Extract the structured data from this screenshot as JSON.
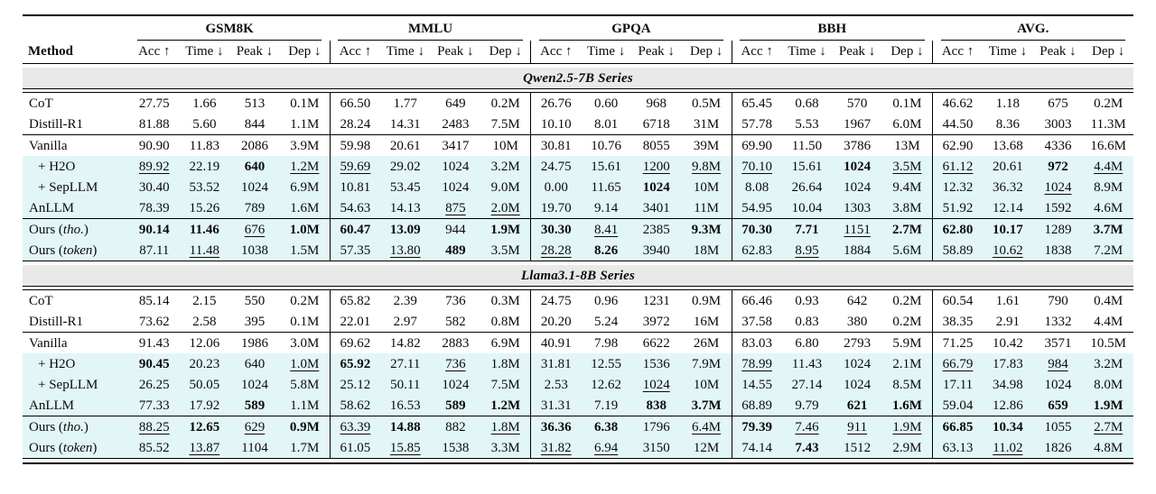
{
  "colors": {
    "highlight": "#e2f6f7",
    "section_bg": "#e9e9e9",
    "rule": "#000000",
    "ink": "#0a0a0a"
  },
  "table": {
    "method_header": "Method",
    "groups": [
      "GSM8K",
      "MMLU",
      "GPQA",
      "BBH",
      "AVG."
    ],
    "metrics": [
      "Acc ↑",
      "Time ↓",
      "Peak ↓",
      "Dep ↓"
    ],
    "legend": {
      "bold_means": "best",
      "underline_means": "second-best"
    },
    "sections": [
      {
        "title": "Qwen2.5-7B Series",
        "blocks": [
          [
            {
              "method": "CoT",
              "hl": false,
              "cells": [
                "27.75",
                "1.66",
                "513",
                "0.1M",
                "66.50",
                "1.77",
                "649",
                "0.2M",
                "26.76",
                "0.60",
                "968",
                "0.5M",
                "65.45",
                "0.68",
                "570",
                "0.1M",
                "46.62",
                "1.18",
                "675",
                "0.2M"
              ]
            },
            {
              "method": "Distill-R1",
              "hl": false,
              "cells": [
                "81.88",
                "5.60",
                "844",
                "1.1M",
                "28.24",
                "14.31",
                "2483",
                "7.5M",
                "10.10",
                "8.01",
                "6718",
                "31M",
                "57.78",
                "5.53",
                "1967",
                "6.0M",
                "44.50",
                "8.36",
                "3003",
                "11.3M"
              ]
            }
          ],
          [
            {
              "method": "Vanilla",
              "hl": false,
              "cells": [
                "90.90",
                "11.83",
                "2086",
                "3.9M",
                "59.98",
                "20.61",
                "3417",
                "10M",
                "30.81",
                "10.76",
                "8055",
                "39M",
                "69.90",
                "11.50",
                "3786",
                "13M",
                "62.90",
                "13.68",
                "4336",
                "16.6M"
              ]
            },
            {
              "method": "+ H2O",
              "indent": true,
              "hl": true,
              "cells": [
                "u:89.92",
                "22.19",
                "b:640",
                "u:1.2M",
                "u:59.69",
                "29.02",
                "1024",
                "3.2M",
                "24.75",
                "15.61",
                "u:1200",
                "u:9.8M",
                "u:70.10",
                "15.61",
                "b:1024",
                "u:3.5M",
                "u:61.12",
                "20.61",
                "b:972",
                "u:4.4M"
              ]
            },
            {
              "method": "+ SepLLM",
              "indent": true,
              "hl": true,
              "cells": [
                "30.40",
                "53.52",
                "1024",
                "6.9M",
                "10.81",
                "53.45",
                "1024",
                "9.0M",
                "0.00",
                "11.65",
                "b:1024",
                "10M",
                "8.08",
                "26.64",
                "1024",
                "9.4M",
                "12.32",
                "36.32",
                "u:1024",
                "8.9M"
              ]
            },
            {
              "method": "AnLLM",
              "hl": true,
              "cells": [
                "78.39",
                "15.26",
                "789",
                "1.6M",
                "54.63",
                "14.13",
                "u:875",
                "u:2.0M",
                "19.70",
                "9.14",
                "3401",
                "11M",
                "54.95",
                "10.04",
                "1303",
                "3.8M",
                "51.92",
                "12.14",
                "1592",
                "4.6M"
              ]
            }
          ],
          [
            {
              "method": "Ours",
              "note": "tho.",
              "hl": true,
              "cells": [
                "b:90.14",
                "b:11.46",
                "u:676",
                "b:1.0M",
                "b:60.47",
                "b:13.09",
                "944",
                "b:1.9M",
                "b:30.30",
                "u:8.41",
                "2385",
                "b:9.3M",
                "b:70.30",
                "b:7.71",
                "u:1151",
                "b:2.7M",
                "b:62.80",
                "b:10.17",
                "1289",
                "b:3.7M"
              ]
            },
            {
              "method": "Ours",
              "note": "token",
              "hl": true,
              "cells": [
                "87.11",
                "u:11.48",
                "1038",
                "1.5M",
                "57.35",
                "u:13.80",
                "b:489",
                "3.5M",
                "u:28.28",
                "b:8.26",
                "3940",
                "18M",
                "62.83",
                "u:8.95",
                "1884",
                "5.6M",
                "58.89",
                "u:10.62",
                "1838",
                "7.2M"
              ]
            }
          ]
        ]
      },
      {
        "title": "Llama3.1-8B Series",
        "blocks": [
          [
            {
              "method": "CoT",
              "hl": false,
              "cells": [
                "85.14",
                "2.15",
                "550",
                "0.2M",
                "65.82",
                "2.39",
                "736",
                "0.3M",
                "24.75",
                "0.96",
                "1231",
                "0.9M",
                "66.46",
                "0.93",
                "642",
                "0.2M",
                "60.54",
                "1.61",
                "790",
                "0.4M"
              ]
            },
            {
              "method": "Distill-R1",
              "hl": false,
              "cells": [
                "73.62",
                "2.58",
                "395",
                "0.1M",
                "22.01",
                "2.97",
                "582",
                "0.8M",
                "20.20",
                "5.24",
                "3972",
                "16M",
                "37.58",
                "0.83",
                "380",
                "0.2M",
                "38.35",
                "2.91",
                "1332",
                "4.4M"
              ]
            }
          ],
          [
            {
              "method": "Vanilla",
              "hl": false,
              "cells": [
                "91.43",
                "12.06",
                "1986",
                "3.0M",
                "69.62",
                "14.82",
                "2883",
                "6.9M",
                "40.91",
                "7.98",
                "6622",
                "26M",
                "83.03",
                "6.80",
                "2793",
                "5.9M",
                "71.25",
                "10.42",
                "3571",
                "10.5M"
              ]
            },
            {
              "method": "+ H2O",
              "indent": true,
              "hl": true,
              "cells": [
                "b:90.45",
                "20.23",
                "640",
                "u:1.0M",
                "b:65.92",
                "27.11",
                "u:736",
                "1.8M",
                "31.81",
                "12.55",
                "1536",
                "7.9M",
                "u:78.99",
                "11.43",
                "1024",
                "2.1M",
                "u:66.79",
                "17.83",
                "u:984",
                "3.2M"
              ]
            },
            {
              "method": "+ SepLLM",
              "indent": true,
              "hl": true,
              "cells": [
                "26.25",
                "50.05",
                "1024",
                "5.8M",
                "25.12",
                "50.11",
                "1024",
                "7.5M",
                "2.53",
                "12.62",
                "u:1024",
                "10M",
                "14.55",
                "27.14",
                "1024",
                "8.5M",
                "17.11",
                "34.98",
                "1024",
                "8.0M"
              ]
            },
            {
              "method": "AnLLM",
              "hl": true,
              "cells": [
                "77.33",
                "17.92",
                "b:589",
                "1.1M",
                "58.62",
                "16.53",
                "b:589",
                "b:1.2M",
                "31.31",
                "7.19",
                "b:838",
                "b:3.7M",
                "68.89",
                "9.79",
                "b:621",
                "b:1.6M",
                "59.04",
                "12.86",
                "b:659",
                "b:1.9M"
              ]
            }
          ],
          [
            {
              "method": "Ours",
              "note": "tho.",
              "hl": true,
              "cells": [
                "u:88.25",
                "b:12.65",
                "u:629",
                "b:0.9M",
                "u:63.39",
                "b:14.88",
                "882",
                "u:1.8M",
                "b:36.36",
                "b:6.38",
                "1796",
                "u:6.4M",
                "b:79.39",
                "u:7.46",
                "u:911",
                "u:1.9M",
                "b:66.85",
                "b:10.34",
                "1055",
                "u:2.7M"
              ]
            },
            {
              "method": "Ours",
              "note": "token",
              "hl": true,
              "cells": [
                "85.52",
                "u:13.87",
                "1104",
                "1.7M",
                "61.05",
                "u:15.85",
                "1538",
                "3.3M",
                "u:31.82",
                "u:6.94",
                "3150",
                "12M",
                "74.14",
                "b:7.43",
                "1512",
                "2.9M",
                "63.13",
                "u:11.02",
                "1826",
                "4.8M"
              ]
            }
          ]
        ]
      }
    ]
  }
}
